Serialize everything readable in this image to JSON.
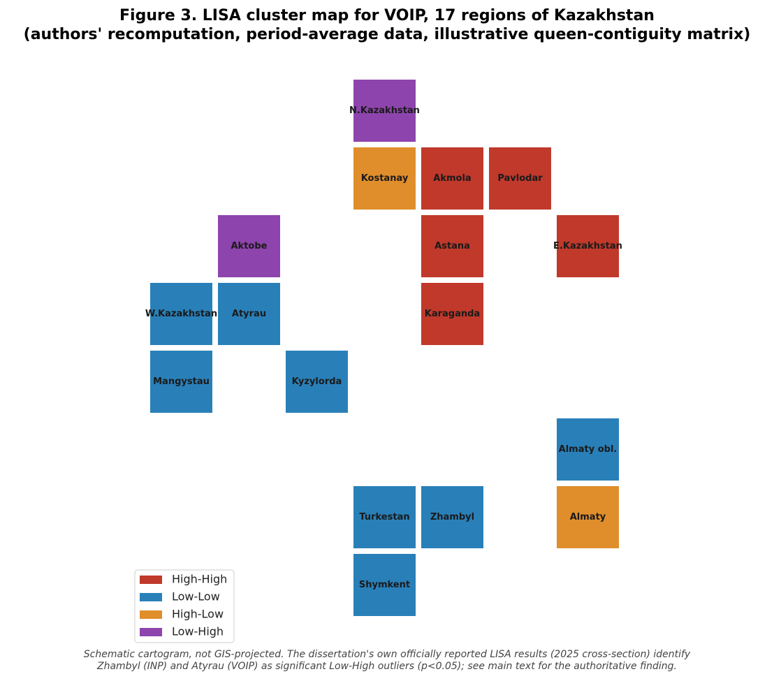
{
  "chart_data": {
    "type": "tilemap",
    "title": "Figure 3. LISA cluster map for VOIP, 17 regions of Kazakhstan",
    "subtitle": "(authors' recomputation, period-average data, illustrative queen-contiguity matrix)",
    "clusters": [
      {
        "name": "High-High",
        "color": "#c0392b"
      },
      {
        "name": "Low-Low",
        "color": "#2980b9"
      },
      {
        "name": "High-Low",
        "color": "#e08e2b"
      },
      {
        "name": "Low-High",
        "color": "#8e44ad"
      }
    ],
    "regions": [
      {
        "name": "N.Kazakhstan",
        "cluster": "Low-High"
      },
      {
        "name": "Kostanay",
        "cluster": "High-Low"
      },
      {
        "name": "Akmola",
        "cluster": "High-High"
      },
      {
        "name": "Pavlodar",
        "cluster": "High-High"
      },
      {
        "name": "Aktobe",
        "cluster": "Low-High"
      },
      {
        "name": "Astana",
        "cluster": "High-High"
      },
      {
        "name": "E.Kazakhstan",
        "cluster": "High-High"
      },
      {
        "name": "W.Kazakhstan",
        "cluster": "Low-Low"
      },
      {
        "name": "Atyrau",
        "cluster": "Low-Low"
      },
      {
        "name": "Karaganda",
        "cluster": "High-High"
      },
      {
        "name": "Mangystau",
        "cluster": "Low-Low"
      },
      {
        "name": "Kyzylorda",
        "cluster": "Low-Low"
      },
      {
        "name": "Almaty obl.",
        "cluster": "Low-Low"
      },
      {
        "name": "Turkestan",
        "cluster": "Low-Low"
      },
      {
        "name": "Zhambyl",
        "cluster": "Low-Low"
      },
      {
        "name": "Almaty",
        "cluster": "High-Low"
      },
      {
        "name": "Shymkent",
        "cluster": "Low-Low"
      }
    ],
    "legend": "lower left",
    "note": [
      "Schematic cartogram, not GIS-projected. The dissertation's own officially reported LISA results (2025 cross-section) identify",
      "Zhambyl (INP) and Atyrau (VOIP) as significant Low-High outliers (p<0.05); see main text for the authoritative finding."
    ]
  }
}
